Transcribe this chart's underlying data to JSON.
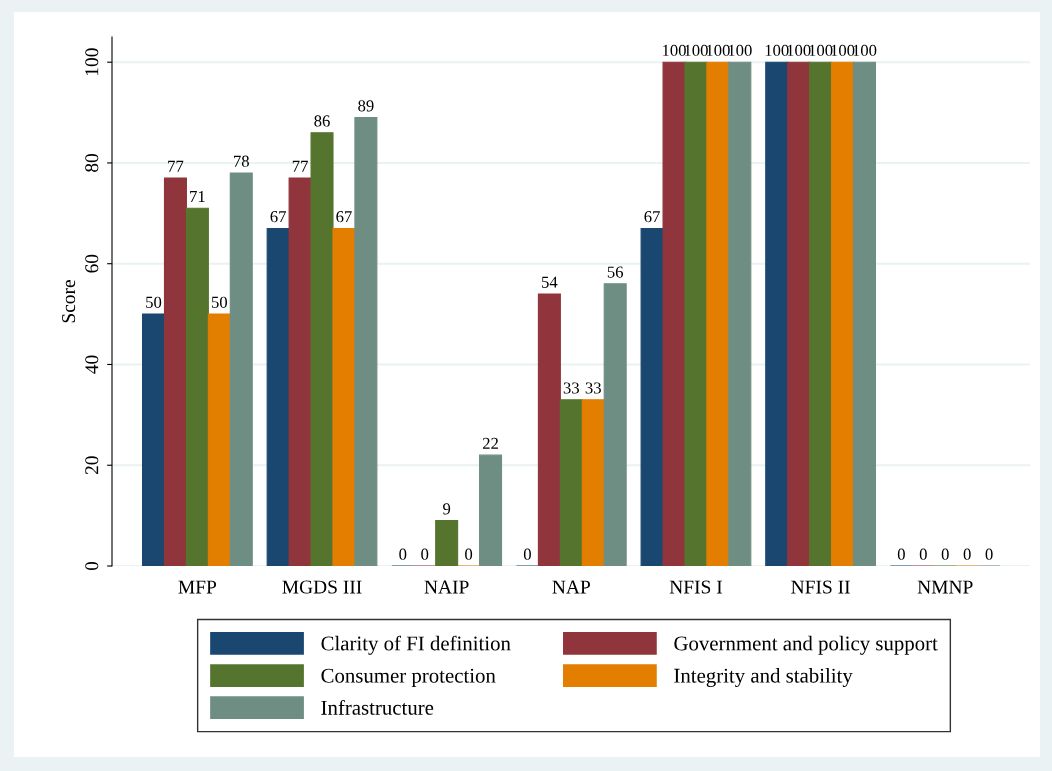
{
  "chart_data": {
    "type": "bar",
    "ylabel": "Score",
    "categories": [
      "MFP",
      "MGDS III",
      "NAIP",
      "NAP",
      "NFIS I",
      "NFIS II",
      "NMNP"
    ],
    "series": [
      {
        "name": "Clarity of FI definition",
        "color": "#1a476f",
        "values": [
          50,
          67,
          0,
          0,
          67,
          100,
          0
        ]
      },
      {
        "name": "Government and policy support",
        "color": "#90353b",
        "values": [
          77,
          77,
          0,
          54,
          100,
          100,
          0
        ]
      },
      {
        "name": "Consumer protection",
        "color": "#55752f",
        "values": [
          71,
          86,
          9,
          33,
          100,
          100,
          0
        ]
      },
      {
        "name": "Integrity and stability",
        "color": "#e37e00",
        "values": [
          50,
          67,
          0,
          33,
          100,
          100,
          0
        ]
      },
      {
        "name": "Infrastructure",
        "color": "#6e8e84",
        "values": [
          78,
          89,
          22,
          56,
          100,
          100,
          0
        ]
      }
    ],
    "ylim": [
      0,
      105
    ],
    "yticks": [
      0,
      20,
      40,
      60,
      80,
      100
    ],
    "grid": "y",
    "legend": "bottom",
    "data_labels": true
  }
}
